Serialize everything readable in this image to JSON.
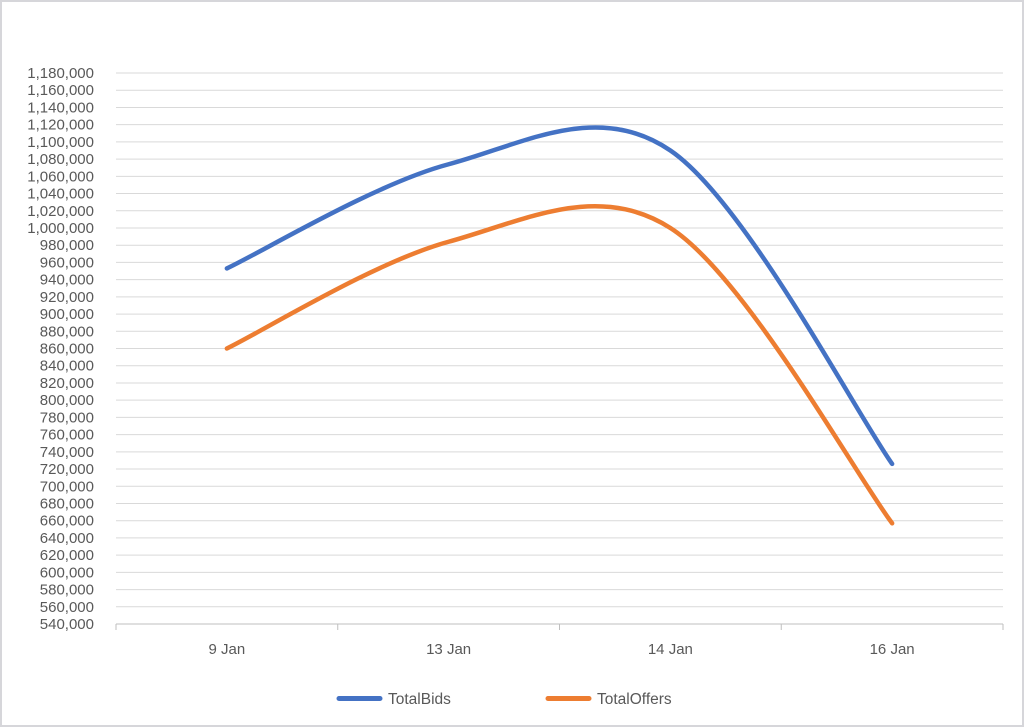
{
  "chart_data": {
    "type": "line",
    "smooth": true,
    "title": "",
    "xlabel": "",
    "ylabel": "",
    "categories": [
      "9 Jan",
      "13 Jan",
      "14 Jan",
      "16 Jan"
    ],
    "series": [
      {
        "name": "TotalBids",
        "color": "#4472C4",
        "values": [
          953000,
          1074000,
          1090000,
          726000
        ]
      },
      {
        "name": "TotalOffers",
        "color": "#ED7D31",
        "values": [
          860000,
          984000,
          1000000,
          657000
        ]
      }
    ],
    "ylim": [
      540000,
      1180000
    ],
    "ytick_step": 20000,
    "ytick_format": "thousands-comma",
    "grid": "horizontal",
    "gridline_color": "#D9D9D9",
    "axis_line_color": "#BFBFBF",
    "tick_label_color": "#595959",
    "line_width": 4.5,
    "legend_position": "bottom"
  }
}
